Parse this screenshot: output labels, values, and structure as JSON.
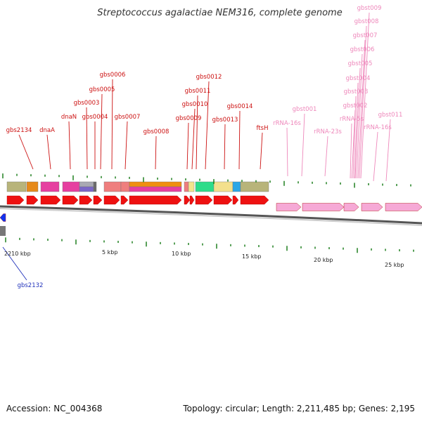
{
  "title": "Streptococcus agalactiae NEM316, complete genome",
  "footer": {
    "accession": "Accession: NC_004368",
    "summary": "Topology: circular; Length: 2,211,485 bp; Genes: 2,195"
  },
  "colors": {
    "gene_label": "#cc1111",
    "rna_label": "#ee88bb",
    "reverse_label": "#2233bb",
    "gene_arrow": "#ee1111",
    "rna_arrow": "#f6a9d6",
    "reverse_arrow": "#1133ee",
    "tick": "#117711",
    "backbone": "#888888"
  },
  "ruler_labels": [
    "2210 kbp",
    "5 kbp",
    "10 kbp",
    "15 kbp",
    "20 kbp",
    "25 kbp"
  ],
  "gene_labels": [
    "gbs2134",
    "dnaA",
    "dnaN",
    "gbs0003",
    "gbs0004",
    "gbs0005",
    "gbs0006",
    "gbs0007",
    "gbs0008",
    "gbs0009",
    "gbs0010",
    "gbs0011",
    "gbs0012",
    "gbs0013",
    "gbs0014",
    "ftsH"
  ],
  "rna_labels": [
    "rRNA-16s",
    "gbst001",
    "rRNA-23s",
    "rRNA-5s",
    "gbst002",
    "gbst003",
    "gbst004",
    "gbst005",
    "gbst006",
    "gbst007",
    "gbst008",
    "gbst009",
    "rRNA-16s",
    "gbst011"
  ],
  "reverse_labels": [
    "gbs2132"
  ]
}
